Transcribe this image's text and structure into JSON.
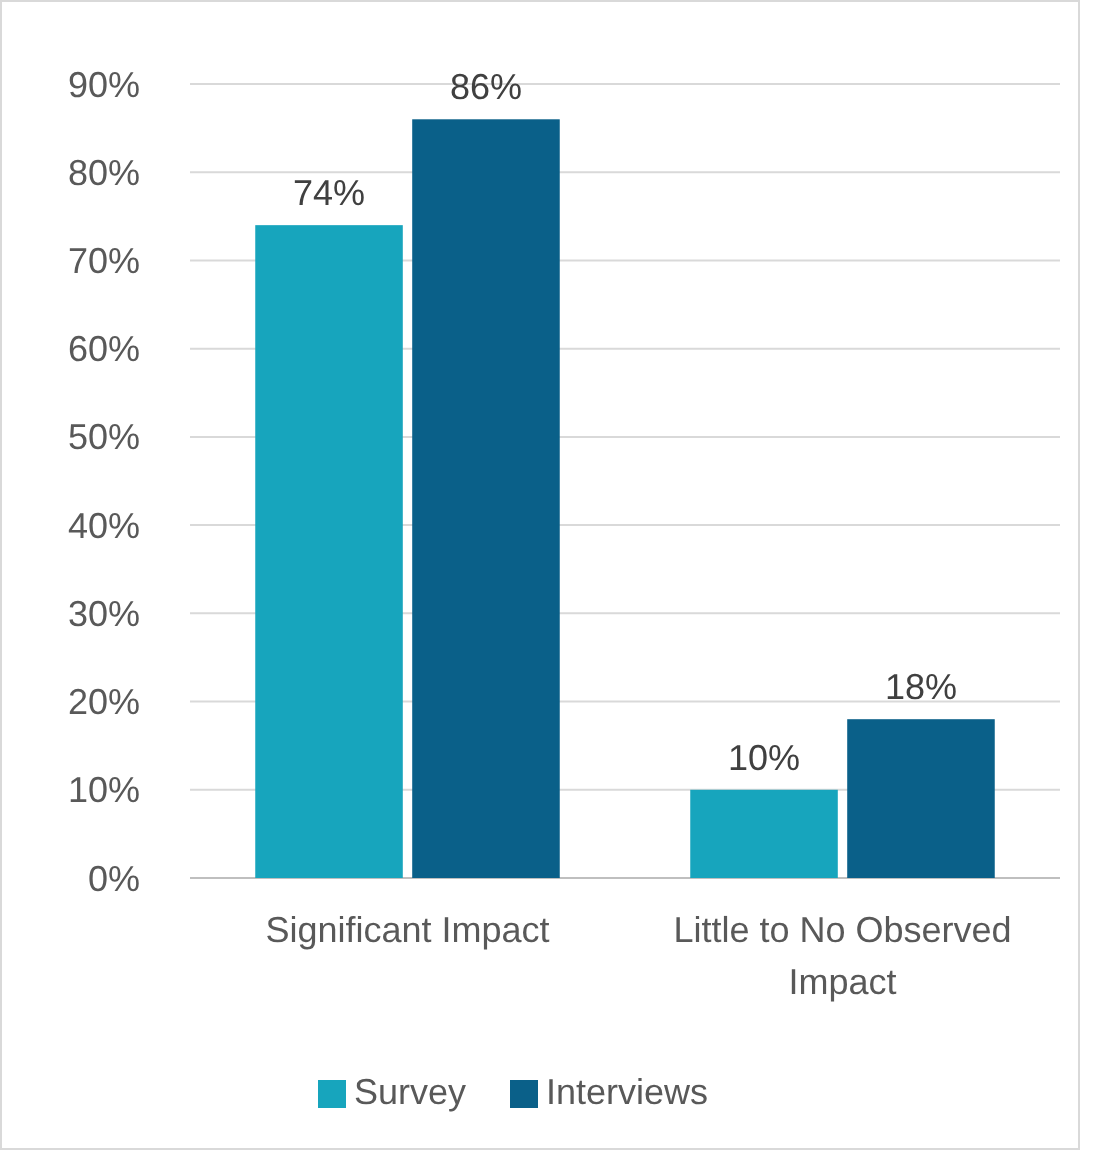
{
  "chart_data": {
    "type": "bar",
    "categories": [
      "Significant Impact",
      "Little to No Observed Impact"
    ],
    "series": [
      {
        "name": "Survey",
        "color": "#17a5bd",
        "values": [
          74,
          10
        ]
      },
      {
        "name": "Interviews",
        "color": "#0a6089",
        "values": [
          86,
          18
        ]
      }
    ],
    "ylim": [
      0,
      90
    ],
    "yticks": [
      {
        "value": 0,
        "label": "0%"
      },
      {
        "value": 10,
        "label": "10%"
      },
      {
        "value": 20,
        "label": "20%"
      },
      {
        "value": 30,
        "label": "30%"
      },
      {
        "value": 40,
        "label": "40%"
      },
      {
        "value": 50,
        "label": "50%"
      },
      {
        "value": 60,
        "label": "60%"
      },
      {
        "value": 70,
        "label": "70%"
      },
      {
        "value": 80,
        "label": "80%"
      },
      {
        "value": 90,
        "label": "90%"
      }
    ],
    "value_labels": [
      [
        "74%",
        "10%"
      ],
      [
        "86%",
        "18%"
      ]
    ],
    "grid": "y",
    "legend": "bottom"
  }
}
